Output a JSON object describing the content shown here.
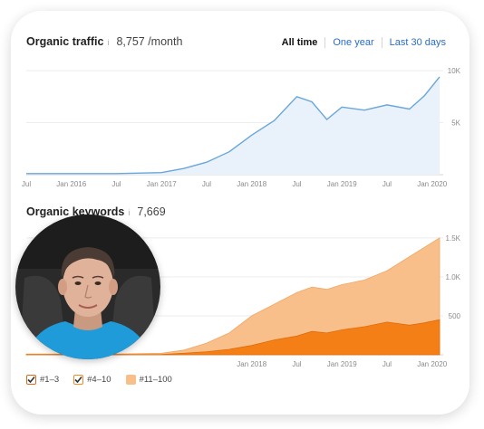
{
  "traffic": {
    "title": "Organic traffic",
    "info_icon": "i",
    "value": "8,757 /month",
    "tabs": [
      {
        "label": "All time",
        "active": true
      },
      {
        "label": "One year",
        "active": false
      },
      {
        "label": "Last 30 days",
        "active": false
      }
    ],
    "y_ticks": [
      "10K",
      "5K"
    ],
    "x_ticks": [
      "Jul",
      "Jan 2016",
      "Jul",
      "Jan 2017",
      "Jul",
      "Jan 2018",
      "Jul",
      "Jan 2019",
      "Jul",
      "Jan 2020"
    ]
  },
  "keywords": {
    "title": "Organic keywords",
    "info_icon": "i",
    "value": "7,669",
    "y_ticks": [
      "1.5K",
      "1.0K",
      "500"
    ],
    "x_ticks": [
      "Jan 2018",
      "Jul",
      "Jan 2019",
      "Jul",
      "Jan 2020"
    ],
    "legend": [
      {
        "label": "#1–3",
        "checked": true,
        "color": "#d95f0e"
      },
      {
        "label": "#4–10",
        "checked": true,
        "color": "#f08a24"
      },
      {
        "label": "#11–100",
        "checked": true,
        "color": "#f8bf8a"
      }
    ]
  },
  "avatar": {
    "icon": "person-photo"
  },
  "chart_data": [
    {
      "type": "area",
      "title": "Organic traffic",
      "x": [
        "Jul 2015",
        "Jan 2016",
        "Jul 2016",
        "Jan 2017",
        "Apr 2017",
        "Jul 2017",
        "Oct 2017",
        "Jan 2018",
        "Apr 2018",
        "Jul 2018",
        "Sep 2018",
        "Nov 2018",
        "Jan 2019",
        "Apr 2019",
        "Jul 2019",
        "Oct 2019",
        "Dec 2019",
        "Feb 2020"
      ],
      "series": [
        {
          "values": [
            100,
            100,
            100,
            200,
            600,
            1200,
            2200,
            3800,
            5200,
            7500,
            7000,
            5300,
            6500,
            6200,
            6700,
            6300,
            7600,
            9400
          ]
        }
      ],
      "ylim": [
        0,
        10000
      ],
      "grid": true,
      "color": "#5b9bd5"
    },
    {
      "type": "area",
      "title": "Organic keywords",
      "x": [
        "Jul 2015",
        "Jan 2016",
        "Jul 2016",
        "Jan 2017",
        "Apr 2017",
        "Jul 2017",
        "Oct 2017",
        "Jan 2018",
        "Apr 2018",
        "Jul 2018",
        "Sep 2018",
        "Nov 2018",
        "Jan 2019",
        "Apr 2019",
        "Jul 2019",
        "Oct 2019",
        "Dec 2019",
        "Feb 2020"
      ],
      "series": [
        {
          "name": "#11–100",
          "values": [
            10,
            10,
            10,
            20,
            60,
            150,
            280,
            500,
            650,
            800,
            870,
            840,
            900,
            960,
            1080,
            1260,
            1380,
            1500
          ]
        },
        {
          "name": "#1–3",
          "values": [
            2,
            2,
            2,
            5,
            20,
            40,
            70,
            120,
            190,
            240,
            300,
            280,
            320,
            360,
            420,
            380,
            410,
            450
          ]
        }
      ],
      "ylim": [
        0,
        1650
      ],
      "grid": true,
      "legend": "bottom-left"
    }
  ]
}
